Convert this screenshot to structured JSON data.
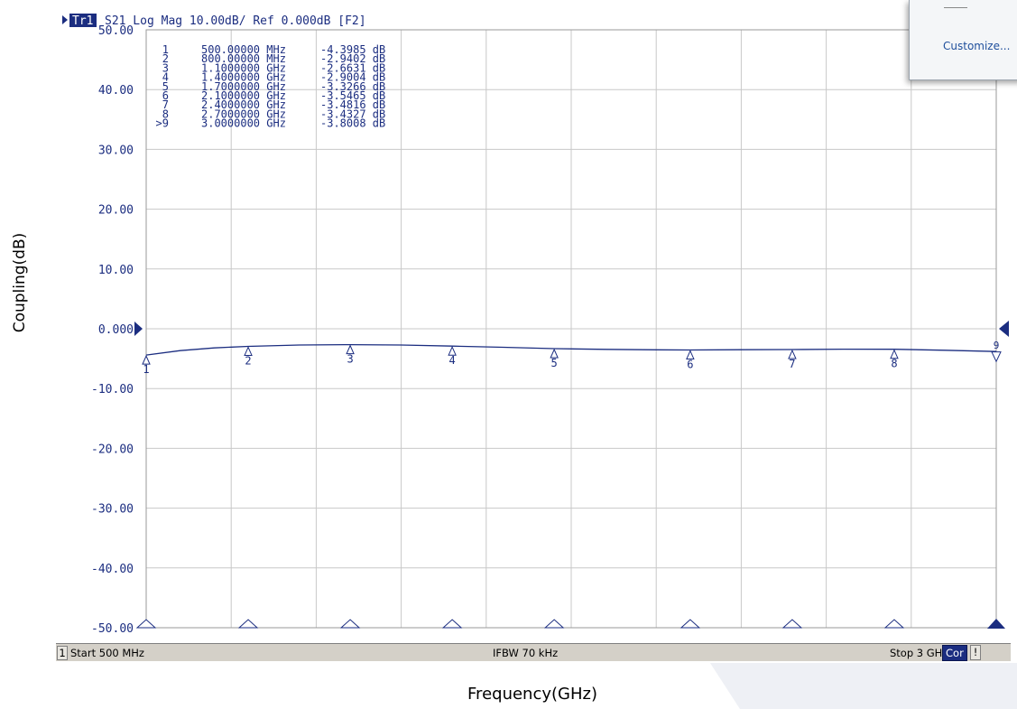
{
  "header": {
    "trace_badge": "Tr1",
    "trace_info": "S21 Log Mag 10.00dB/ Ref 0.000dB [F2]"
  },
  "popup": {
    "customize_label": "Customize..."
  },
  "statusbar": {
    "channel": "1",
    "start": "Start 500 MHz",
    "ifbw": "IFBW 70 kHz",
    "stop": "Stop 3 GHz",
    "cor": "Cor",
    "excl": "!"
  },
  "labels": {
    "y": "Coupling(dB)",
    "x": "Frequency(GHz)"
  },
  "colors": {
    "trace": "#1b2d80",
    "grid": "#c8c8c8",
    "text": "#1b2d80"
  },
  "chart_data": {
    "type": "line",
    "title": "",
    "xlabel": "Frequency(GHz)",
    "ylabel": "Coupling(dB)",
    "xlim": [
      0.5,
      3.0
    ],
    "ylim": [
      -50,
      50
    ],
    "grid": true,
    "y_tick_labels": [
      "50.00",
      "40.00",
      "30.00",
      "20.00",
      "10.00",
      "0.000",
      "-10.00",
      "-20.00",
      "-30.00",
      "-40.00",
      "-50.00"
    ],
    "y_tick_values": [
      50,
      40,
      30,
      20,
      10,
      0,
      -10,
      -20,
      -30,
      -40,
      -50
    ],
    "series": [
      {
        "x": [
          0.5,
          0.6,
          0.7,
          0.8,
          0.95,
          1.1,
          1.25,
          1.4,
          1.55,
          1.7,
          1.85,
          2.0,
          2.1,
          2.25,
          2.4,
          2.55,
          2.7,
          2.85,
          3.0
        ],
        "values": [
          -4.4,
          -3.65,
          -3.2,
          -2.94,
          -2.72,
          -2.66,
          -2.72,
          -2.9,
          -3.1,
          -3.33,
          -3.45,
          -3.52,
          -3.55,
          -3.5,
          -3.48,
          -3.42,
          -3.43,
          -3.6,
          -3.8
        ]
      }
    ],
    "markers": [
      {
        "id": "1",
        "freq_ghz": 0.5,
        "freq_text": "500.00000 MHz",
        "value": -4.3985,
        "value_text": "-4.3985 dB"
      },
      {
        "id": "2",
        "freq_ghz": 0.8,
        "freq_text": "800.00000 MHz",
        "value": -2.9402,
        "value_text": "-2.9402 dB"
      },
      {
        "id": "3",
        "freq_ghz": 1.1,
        "freq_text": "1.1000000 GHz",
        "value": -2.6631,
        "value_text": "-2.6631 dB"
      },
      {
        "id": "4",
        "freq_ghz": 1.4,
        "freq_text": "1.4000000 GHz",
        "value": -2.9004,
        "value_text": "-2.9004 dB"
      },
      {
        "id": "5",
        "freq_ghz": 1.7,
        "freq_text": "1.7000000 GHz",
        "value": -3.3266,
        "value_text": "-3.3266 dB"
      },
      {
        "id": "6",
        "freq_ghz": 2.1,
        "freq_text": "2.1000000 GHz",
        "value": -3.5465,
        "value_text": "-3.5465 dB"
      },
      {
        "id": "7",
        "freq_ghz": 2.4,
        "freq_text": "2.4000000 GHz",
        "value": -3.4816,
        "value_text": "-3.4816 dB"
      },
      {
        "id": "8",
        "freq_ghz": 2.7,
        "freq_text": "2.7000000 GHz",
        "value": -3.4327,
        "value_text": "-3.4327 dB"
      },
      {
        "id": "9",
        "freq_ghz": 3.0,
        "freq_text": "3.0000000 GHz",
        "value": -3.8008,
        "value_text": "-3.8008 dB",
        "active": true,
        "prefix": ">9"
      }
    ],
    "reference_level": 0
  }
}
